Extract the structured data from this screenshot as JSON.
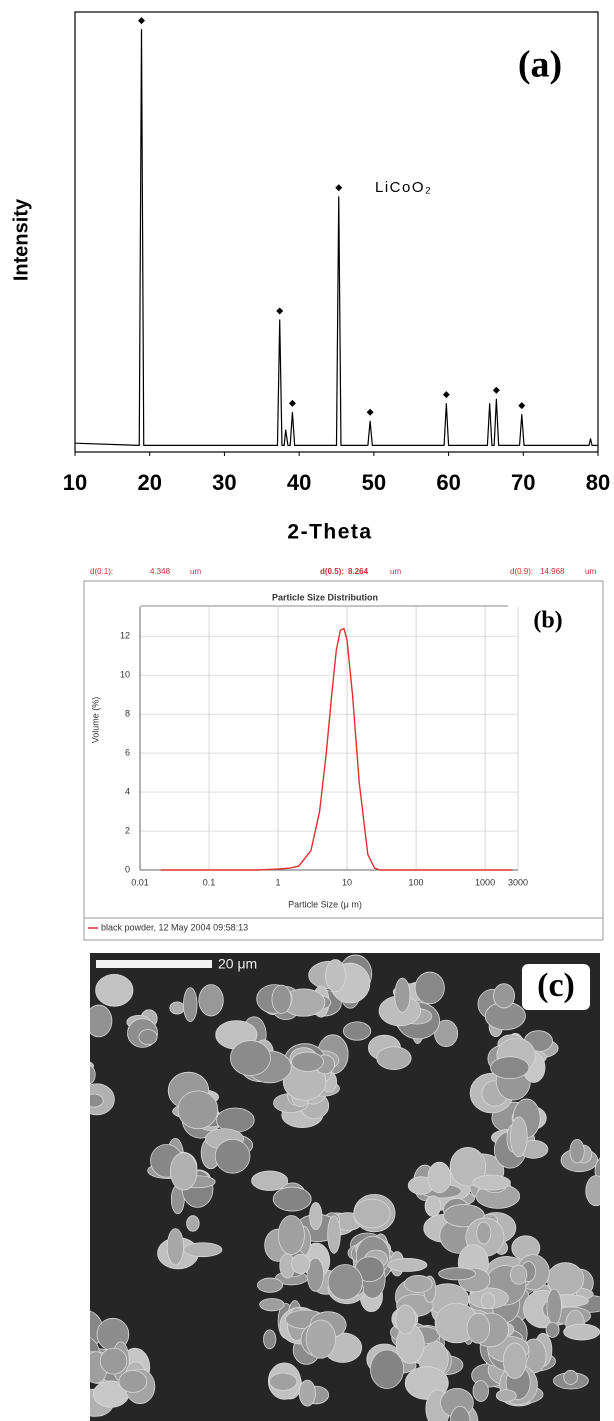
{
  "chart_data": [
    {
      "type": "line",
      "title": "(a)",
      "xlabel": "2-Theta",
      "ylabel": "Intensity",
      "annotation": "LiCoO₂",
      "xlim": [
        10,
        80
      ],
      "xticks": [
        10,
        20,
        30,
        40,
        50,
        60,
        70,
        80
      ],
      "ylim": [
        0,
        100
      ],
      "grid": false,
      "series": [
        {
          "mode": "lines",
          "color": "#000000",
          "x": [
            10,
            18.6,
            18.9,
            19.2,
            37.1,
            37.4,
            37.7,
            38.0,
            38.2,
            38.5,
            38.8,
            39.1,
            39.4,
            45.0,
            45.3,
            45.6,
            49.2,
            49.5,
            49.8,
            59.4,
            59.7,
            60.0,
            65.2,
            65.5,
            65.8,
            66.1,
            66.4,
            66.7,
            69.5,
            69.8,
            70.1,
            78.8,
            79.0,
            79.2,
            80
          ],
          "values": [
            2,
            1.5,
            96,
            1.5,
            1.5,
            30,
            1.5,
            1.5,
            5,
            1.5,
            1.5,
            9,
            1.5,
            1.5,
            58,
            1.5,
            1.5,
            7,
            1.5,
            1.5,
            11,
            1.5,
            1.5,
            11,
            1.5,
            1.5,
            12,
            1.5,
            1.5,
            8.5,
            1.5,
            1.5,
            3,
            1.5,
            1.5
          ]
        },
        {
          "mode": "markers",
          "color": "#000000",
          "x": [
            18.9,
            37.4,
            39.1,
            45.3,
            49.5,
            59.7,
            66.4,
            69.8
          ],
          "values": [
            96,
            30,
            9,
            58,
            7,
            11,
            12,
            8.5
          ]
        }
      ]
    },
    {
      "type": "line",
      "title": "(b)",
      "subtitle": "Particle Size Distribution",
      "xlabel": "Particle Size (μ m)",
      "ylabel": "Volume (%)",
      "log_x": true,
      "xlim": [
        0.01,
        3000
      ],
      "xticks": [
        0.01,
        0.1,
        1,
        10,
        100,
        1000,
        3000
      ],
      "ylim": [
        0,
        13.5
      ],
      "yticks": [
        0,
        2,
        4,
        6,
        8,
        10,
        12
      ],
      "grid": true,
      "legend": "bottom-left",
      "stats": [
        {
          "label": "d(0.1):",
          "value": 4.348,
          "unit": "um"
        },
        {
          "label": "d(0.5):",
          "value": 8.264,
          "unit": "um"
        },
        {
          "label": "d(0.9):",
          "value": 14.968,
          "unit": "um"
        }
      ],
      "series": [
        {
          "mode": "lines",
          "name": "black powder, 12 May 2004 09:58:13",
          "color": "#e03030",
          "x": [
            0.02,
            0.1,
            0.5,
            1,
            1.5,
            2,
            3,
            4,
            5,
            6,
            7,
            8,
            9,
            10,
            12,
            15,
            20,
            25,
            30,
            100,
            1000,
            2500
          ],
          "values": [
            0,
            0,
            0,
            0.05,
            0.1,
            0.2,
            1,
            3,
            6,
            9,
            11.3,
            12.3,
            12.4,
            11.8,
            9,
            4.5,
            0.8,
            0.1,
            0,
            0,
            0,
            0
          ]
        }
      ]
    }
  ],
  "image": {
    "label": "(c)",
    "scale_bar": "20 μm"
  }
}
